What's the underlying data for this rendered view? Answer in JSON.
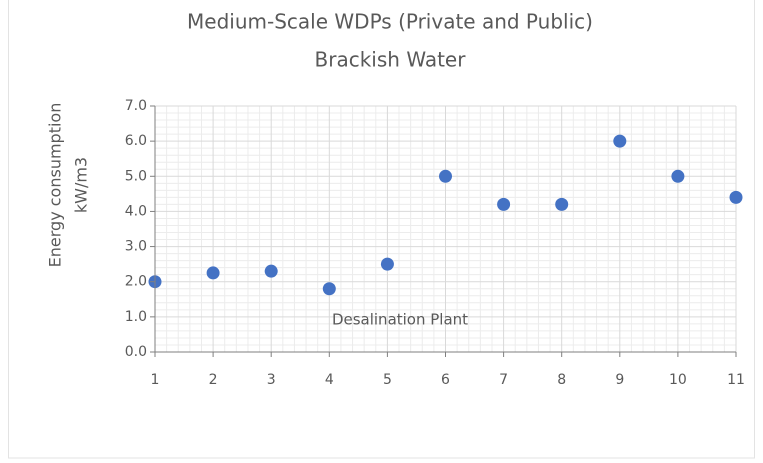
{
  "chart_data": {
    "type": "scatter",
    "title": "Medium-Scale WDPs (Private and Public)",
    "subtitle": "Brackish Water",
    "ylabel": [
      "Energy consumption",
      "kW/m3"
    ],
    "xlabel": "Desalination Plant",
    "series": [
      {
        "color": "#4472c4",
        "x": [
          1,
          2,
          3,
          4,
          5,
          6,
          7,
          8,
          9,
          10,
          11
        ],
        "values": [
          2.0,
          2.25,
          2.3,
          1.8,
          2.5,
          5.0,
          4.2,
          4.2,
          6.0,
          5.0,
          4.4
        ]
      }
    ],
    "xlim": [
      1,
      11
    ],
    "xticks": [
      1,
      2,
      3,
      4,
      5,
      6,
      7,
      8,
      9,
      10,
      11
    ],
    "ylim": [
      0,
      7
    ],
    "yticks": [
      {
        "value": 0,
        "label": "0.0"
      },
      {
        "value": 1,
        "label": "1.0"
      },
      {
        "value": 2,
        "label": "2.0"
      },
      {
        "value": 3,
        "label": "3.0"
      },
      {
        "value": 4,
        "label": "4.0"
      },
      {
        "value": 5,
        "label": "5.0"
      },
      {
        "value": 6,
        "label": "6.0"
      },
      {
        "value": 7,
        "label": "7.0"
      }
    ],
    "grid": true
  }
}
